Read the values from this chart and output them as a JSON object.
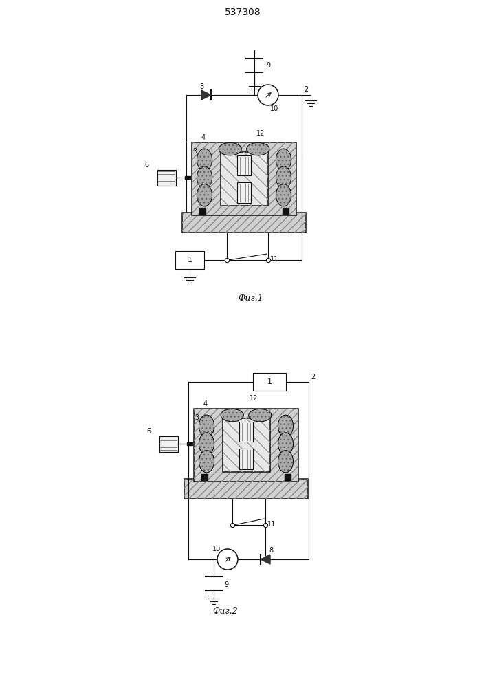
{
  "title": "537308",
  "fig1_caption": "Фиг.1",
  "fig2_caption": "Фиг.2",
  "bg_color": "#ffffff",
  "line_color": "#111111",
  "hatch_lt": "#cccccc",
  "dark_fill": "#333333",
  "coil_fill": "#aaaaaa",
  "body_fill": "#d8d8d8",
  "inner_fill": "#e8e8e8",
  "base_fill": "#c8c8c8"
}
